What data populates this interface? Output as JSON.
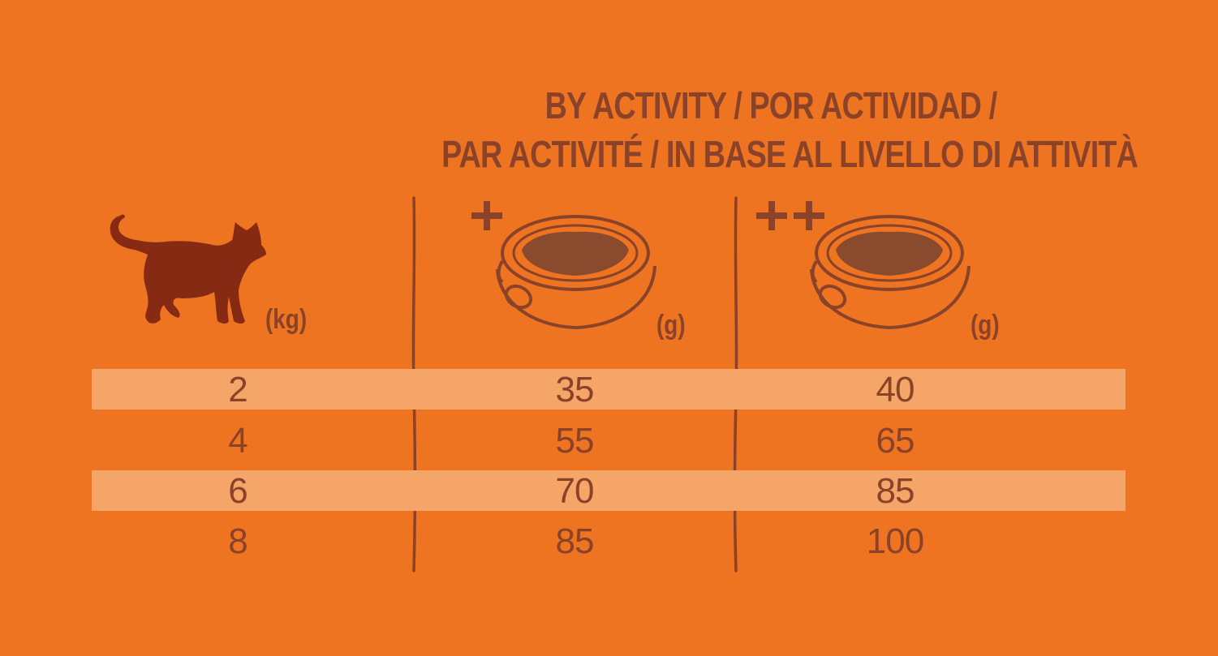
{
  "heading": {
    "line1": "BY ACTIVITY / POR ACTIVIDAD /",
    "line2": "PAR ACTIVITÉ / IN BASE AL LIVELLO DI ATTIVITÀ"
  },
  "columns": {
    "weight": {
      "icon": "cat-icon",
      "unit": "(kg)"
    },
    "moderate": {
      "level": "+",
      "icon": "food-bowl-icon",
      "unit": "(g)"
    },
    "high": {
      "level": "++",
      "icon": "food-bowl-icon",
      "unit": "(g)"
    }
  },
  "rows": [
    {
      "kg": "2",
      "moderate": "35",
      "high": "40"
    },
    {
      "kg": "4",
      "moderate": "55",
      "high": "65"
    },
    {
      "kg": "6",
      "moderate": "70",
      "high": "85"
    },
    {
      "kg": "8",
      "moderate": "85",
      "high": "100"
    }
  ],
  "colors": {
    "background": "#ee7421",
    "band": "#f4a567",
    "text": "#8a4229",
    "cat": "#862a14",
    "food": "#8a4a2d"
  }
}
